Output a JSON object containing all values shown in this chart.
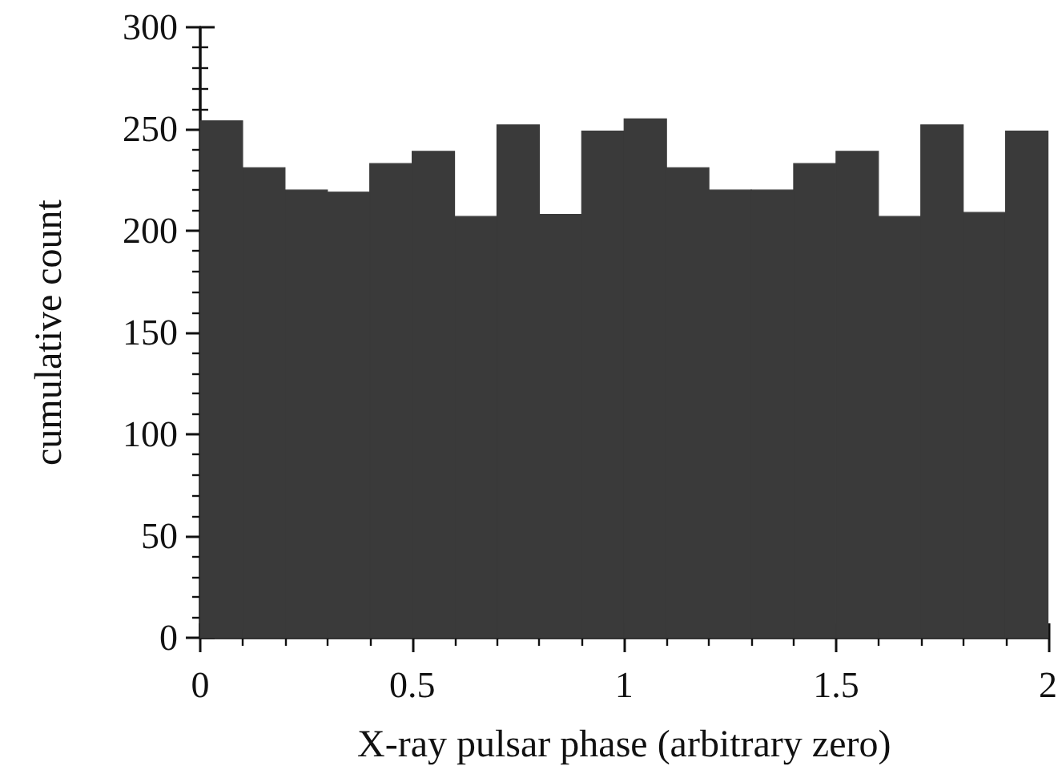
{
  "chart_data": {
    "type": "histogram",
    "xlabel": "X-ray pulsar phase (arbitrary zero)",
    "ylabel": "cumulative count",
    "bins": [
      0,
      0.1,
      0.2,
      0.3,
      0.4,
      0.5,
      0.6,
      0.7,
      0.8,
      0.9,
      1,
      1.1,
      1.2,
      1.3,
      1.4,
      1.5,
      1.6,
      1.7,
      1.8,
      1.9,
      2
    ],
    "values": [
      254,
      231,
      220,
      219,
      233,
      239,
      207,
      252,
      208,
      249,
      255,
      231,
      220,
      220,
      233,
      239,
      207,
      252,
      209,
      249
    ],
    "color": "#3a3a3a",
    "xlim": [
      0,
      2
    ],
    "xticks": [
      0,
      0.5,
      1,
      1.5,
      2
    ],
    "ylim": [
      0,
      300
    ],
    "yticks": [
      0,
      50,
      100,
      150,
      200,
      250,
      300
    ],
    "grid": false
  }
}
